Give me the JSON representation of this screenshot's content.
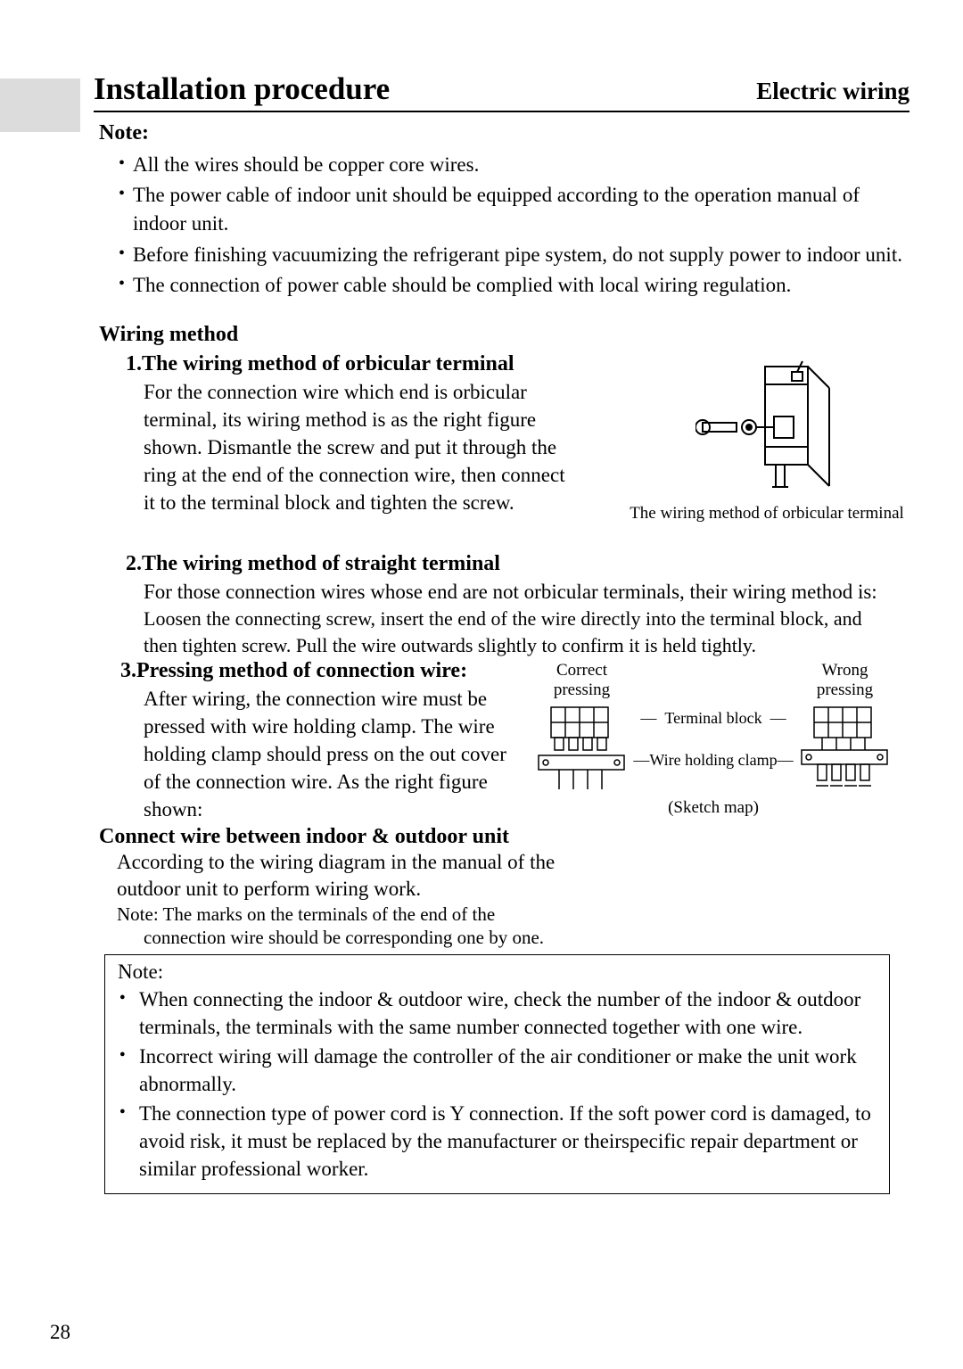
{
  "header": {
    "left": "Installation procedure",
    "right": "Electric wiring"
  },
  "noteHeading": "Note:",
  "noteBullets": [
    "All the wires should be copper core wires.",
    "The power cable of indoor unit should be equipped according to the operation manual of indoor unit.",
    "Before finishing vacuumizing the refrigerant pipe system, do not supply power to indoor unit.",
    "The connection of power cable should be complied with local wiring regulation."
  ],
  "wiringHeading": "Wiring method",
  "sec1": {
    "heading": "1.The wiring method of orbicular terminal",
    "body": "For the connection wire which end is orbicular terminal, its wiring method is as the right figure shown. Dismantle the screw and put it through the ring at the end of the connection wire, then connect it to the terminal block and tighten the screw.",
    "caption": "The wiring method of orbicular terminal"
  },
  "sec2": {
    "heading": "2.The wiring method of straight terminal",
    "body1": "For those connection wires whose end are not orbicular terminals, their wiring method is:",
    "body2": "Loosen the connecting screw, insert the end of the wire directly into the terminal block, and then tighten screw. Pull the wire outwards slightly to confirm it is held tightly."
  },
  "sec3": {
    "heading": "3.Pressing method of connection wire:",
    "body": "After wiring, the connection wire must be pressed with wire holding clamp. The wire holding clamp should press on the out cover of the connection wire. As the right figure shown:",
    "correct": "Correct pressing",
    "wrong": "Wrong pressing",
    "terminal": "Terminal block",
    "clamp": "Wire holding clamp",
    "caption": "(Sketch map)"
  },
  "connect": {
    "heading": "Connect wire between indoor & outdoor unit",
    "body": "According to the wiring diagram in the manual of the outdoor unit to perform wiring work.",
    "note": "Note: The marks on the terminals of the end of the",
    "note2": "connection wire should be corresponding one by one."
  },
  "noteBox": {
    "title": "Note:",
    "items": [
      "When connecting the indoor & outdoor wire, check the number of the indoor & outdoor terminals, the terminals with the same number connected together with one wire.",
      "Incorrect wiring will damage the controller of the air conditioner or make the unit work abnormally.",
      "The connection type of power cord is Y connection. If the soft power cord is damaged, to avoid risk, it must be replaced by the manufacturer or theirspecific repair department or similar professional worker."
    ]
  },
  "pageNumber": "28",
  "colors": {
    "text": "#000000",
    "bg": "#ffffff",
    "marginBar": "#dcdcdc"
  }
}
